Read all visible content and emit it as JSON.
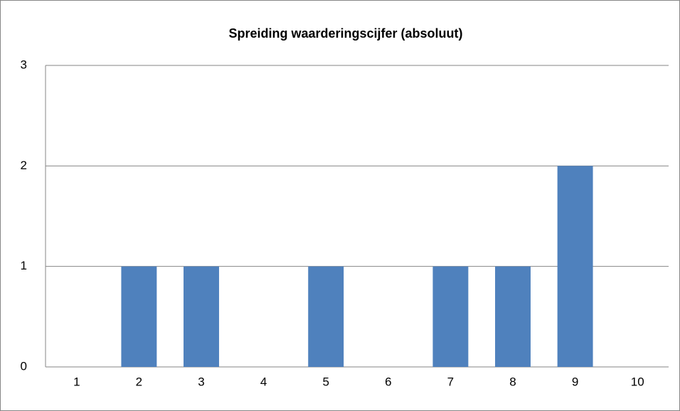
{
  "chart_data": {
    "type": "bar",
    "title": "Spreiding waarderingscijfer (absoluut)",
    "categories": [
      "1",
      "2",
      "3",
      "4",
      "5",
      "6",
      "7",
      "8",
      "9",
      "10"
    ],
    "values": [
      0,
      1,
      1,
      0,
      1,
      0,
      1,
      1,
      2,
      0
    ],
    "color": "#4f81bd",
    "ylim": [
      0,
      3
    ],
    "yticks": [
      0,
      1,
      2,
      3
    ],
    "grid": true
  }
}
